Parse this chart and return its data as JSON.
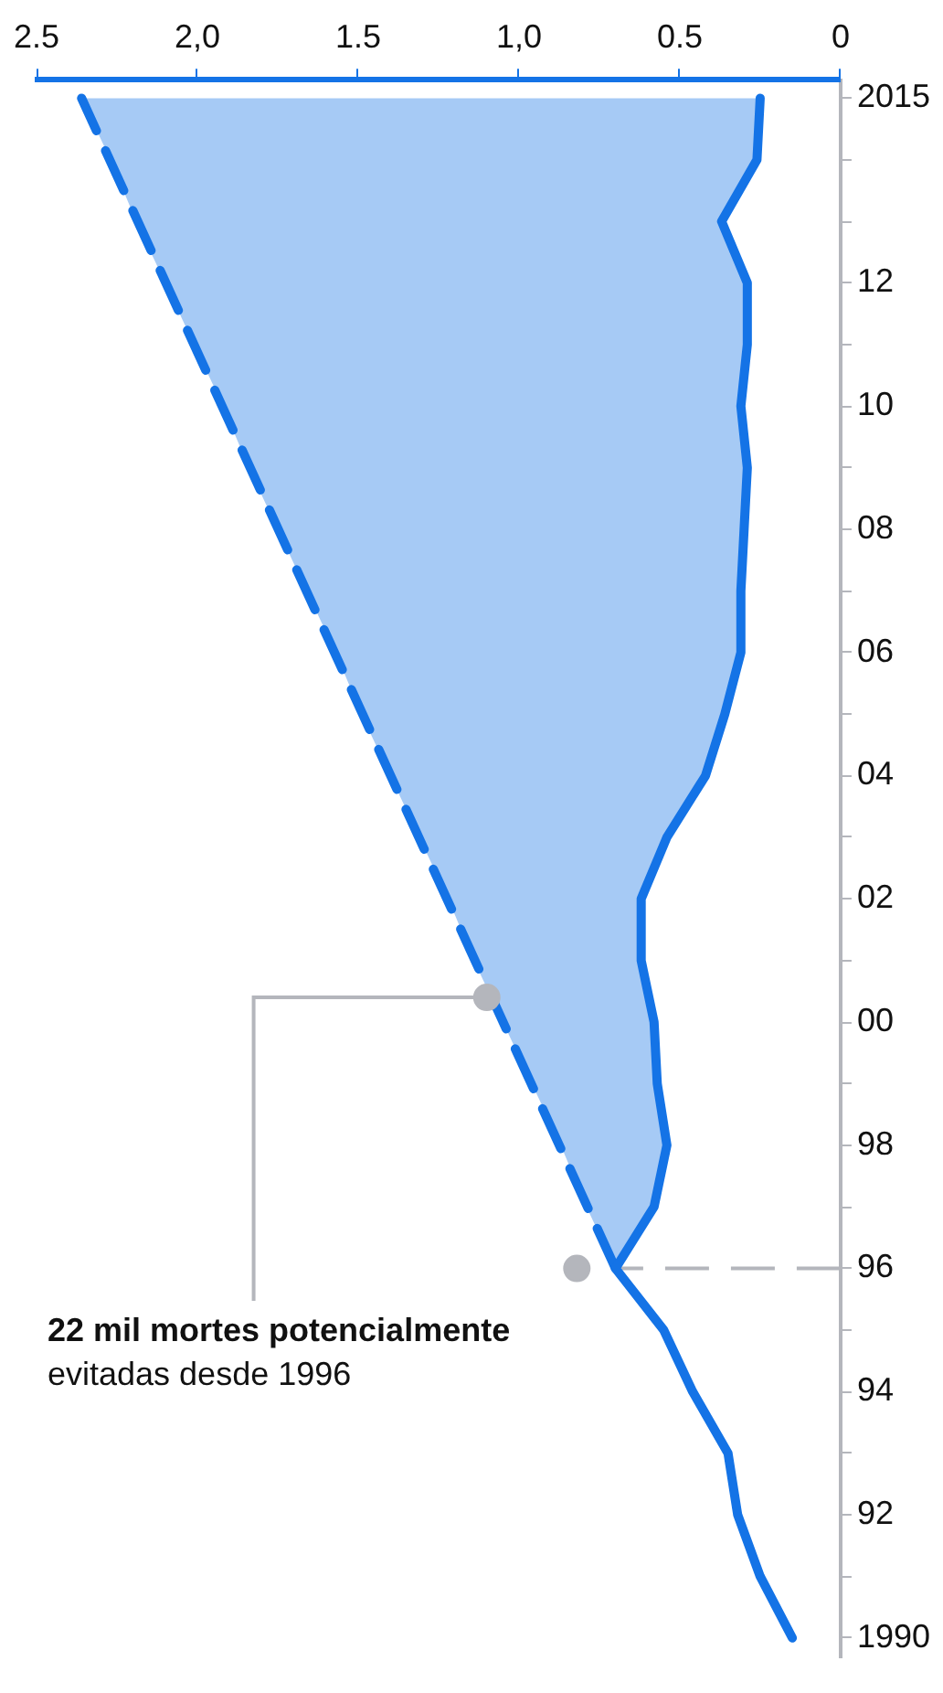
{
  "chart_data": {
    "type": "line",
    "orientation": "horizontal",
    "annotations": [
      "22 mil mortes potencialmente",
      "evitadas desde 1996"
    ],
    "ylim": [
      1989.7,
      2015.3
    ],
    "yticks": [
      {
        "value": 1990,
        "label": "1990"
      },
      {
        "value": 1991,
        "label": null
      },
      {
        "value": 1992,
        "label": "92"
      },
      {
        "value": 1993,
        "label": null
      },
      {
        "value": 1994,
        "label": "94"
      },
      {
        "value": 1995,
        "label": null
      },
      {
        "value": 1996,
        "label": "96"
      },
      {
        "value": 1997,
        "label": null
      },
      {
        "value": 1998,
        "label": "98"
      },
      {
        "value": 1999,
        "label": null
      },
      {
        "value": 2000,
        "label": "00"
      },
      {
        "value": 2001,
        "label": null
      },
      {
        "value": 2002,
        "label": "02"
      },
      {
        "value": 2003,
        "label": null
      },
      {
        "value": 2004,
        "label": "04"
      },
      {
        "value": 2005,
        "label": null
      },
      {
        "value": 2006,
        "label": "06"
      },
      {
        "value": 2007,
        "label": null
      },
      {
        "value": 2008,
        "label": "08"
      },
      {
        "value": 2009,
        "label": null
      },
      {
        "value": 2010,
        "label": "10"
      },
      {
        "value": 2011,
        "label": null
      },
      {
        "value": 2012,
        "label": "12"
      },
      {
        "value": 2013,
        "label": null
      },
      {
        "value": 2014,
        "label": null
      },
      {
        "value": 2015,
        "label": "2015"
      }
    ],
    "xlim": [
      2.5,
      0
    ],
    "xticks": [
      {
        "value": 0,
        "label": "0"
      },
      {
        "value": 0.5,
        "label": "0.5"
      },
      {
        "value": 1,
        "label": "1,0"
      },
      {
        "value": 1.5,
        "label": "1.5"
      },
      {
        "value": 2,
        "label": "2,0"
      },
      {
        "value": 2.5,
        "label": "2.5"
      }
    ],
    "ref_lines": [
      {
        "axis": "y",
        "value": 1996,
        "color": "#b4b6bc",
        "line_style": "dashed"
      }
    ],
    "grid": false,
    "legend": false,
    "series": [
      {
        "type": "line",
        "color": "#1473e6",
        "x": [
          1990,
          1991,
          1992,
          1993,
          1994,
          1995,
          1996,
          1997,
          1998,
          1999,
          2000,
          2001,
          2002,
          2003,
          2004,
          2005,
          2006,
          2007,
          2008,
          2009,
          2010,
          2011,
          2012,
          2013,
          2014,
          2015
        ],
        "values": [
          0.15,
          0.25,
          0.32,
          0.35,
          0.46,
          0.55,
          0.7,
          0.58,
          0.54,
          0.57,
          0.58,
          0.62,
          0.62,
          0.54,
          0.42,
          0.36,
          0.31,
          0.31,
          0.3,
          0.29,
          0.31,
          0.29,
          0.29,
          0.37,
          0.26,
          0.25
        ],
        "lower": [
          null,
          null,
          null,
          null,
          null,
          null,
          0.7,
          0.58,
          0.54,
          0.57,
          0.58,
          0.62,
          0.62,
          0.54,
          0.42,
          0.36,
          0.31,
          0.31,
          0.3,
          0.29,
          0.31,
          0.29,
          0.29,
          0.37,
          0.26,
          0.25
        ],
        "upper": [
          null,
          null,
          null,
          null,
          null,
          null,
          0.7,
          0.79,
          0.87,
          0.96,
          1.05,
          1.14,
          1.22,
          1.31,
          1.4,
          1.49,
          1.57,
          1.66,
          1.75,
          1.84,
          1.92,
          2.01,
          2.1,
          2.19,
          2.27,
          2.36
        ]
      },
      {
        "type": "line",
        "color": "#1473e6",
        "line_style": "dashed",
        "x": [
          1996,
          2015
        ],
        "values": [
          0.7,
          2.36
        ]
      },
      {
        "type": "scatter",
        "color": "#b4b6bc",
        "x": [
          1996,
          2000.4
        ],
        "values": [
          0.82,
          1.1
        ]
      }
    ]
  }
}
